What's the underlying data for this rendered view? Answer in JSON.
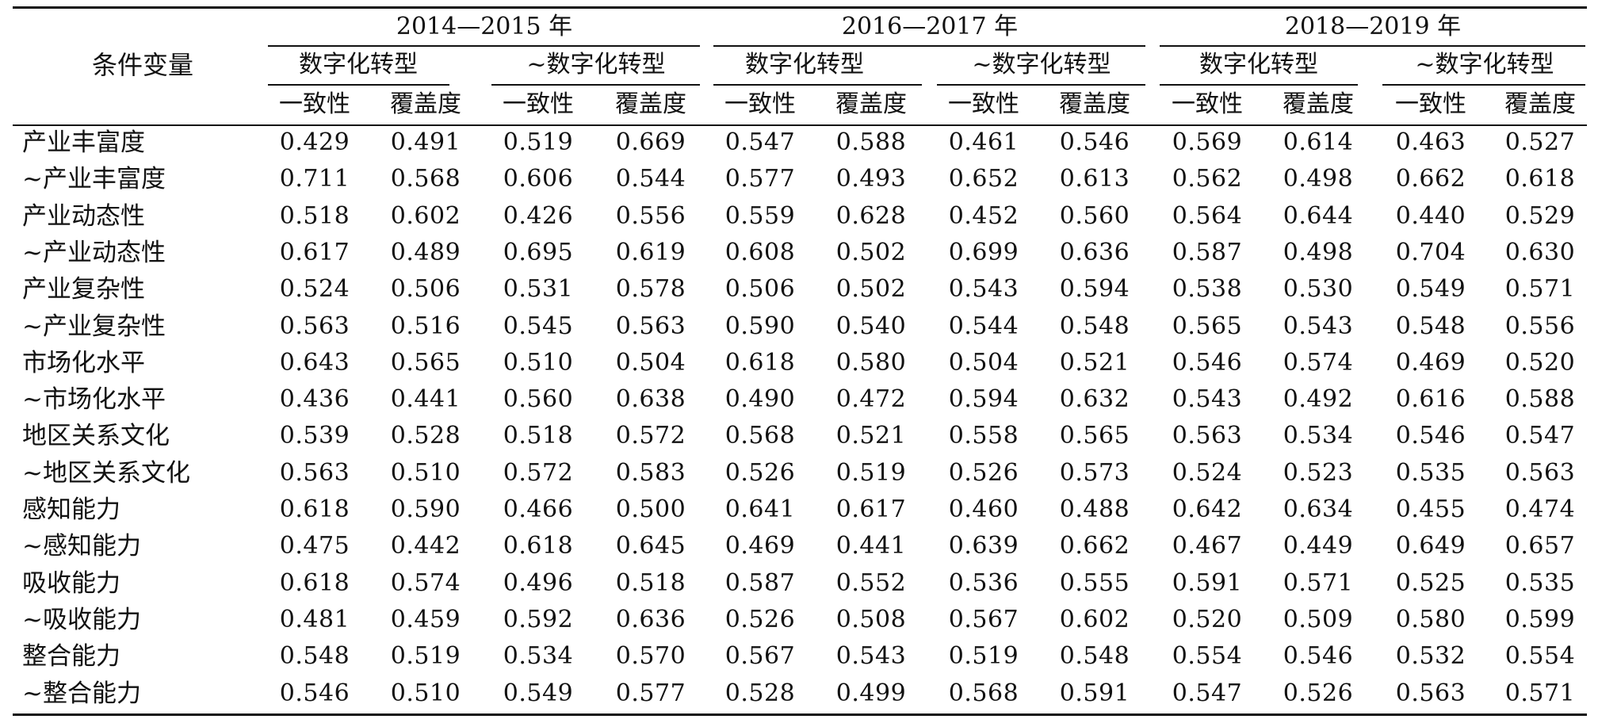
{
  "table": {
    "stub_header": "条件变量",
    "periods": [
      "2014—2015 年",
      "2016—2017 年",
      "2018—2019 年"
    ],
    "outcomes": [
      "数字化转型",
      "~数字化转型"
    ],
    "measures": [
      "一致性",
      "覆盖度"
    ],
    "rows": [
      {
        "label": "产业丰富度",
        "values": [
          "0.429",
          "0.491",
          "0.519",
          "0.669",
          "0.547",
          "0.588",
          "0.461",
          "0.546",
          "0.569",
          "0.614",
          "0.463",
          "0.527"
        ]
      },
      {
        "label": "~产业丰富度",
        "values": [
          "0.711",
          "0.568",
          "0.606",
          "0.544",
          "0.577",
          "0.493",
          "0.652",
          "0.613",
          "0.562",
          "0.498",
          "0.662",
          "0.618"
        ]
      },
      {
        "label": "产业动态性",
        "values": [
          "0.518",
          "0.602",
          "0.426",
          "0.556",
          "0.559",
          "0.628",
          "0.452",
          "0.560",
          "0.564",
          "0.644",
          "0.440",
          "0.529"
        ]
      },
      {
        "label": "~产业动态性",
        "values": [
          "0.617",
          "0.489",
          "0.695",
          "0.619",
          "0.608",
          "0.502",
          "0.699",
          "0.636",
          "0.587",
          "0.498",
          "0.704",
          "0.630"
        ]
      },
      {
        "label": "产业复杂性",
        "values": [
          "0.524",
          "0.506",
          "0.531",
          "0.578",
          "0.506",
          "0.502",
          "0.543",
          "0.594",
          "0.538",
          "0.530",
          "0.549",
          "0.571"
        ]
      },
      {
        "label": "~产业复杂性",
        "values": [
          "0.563",
          "0.516",
          "0.545",
          "0.563",
          "0.590",
          "0.540",
          "0.544",
          "0.548",
          "0.565",
          "0.543",
          "0.548",
          "0.556"
        ]
      },
      {
        "label": "市场化水平",
        "values": [
          "0.643",
          "0.565",
          "0.510",
          "0.504",
          "0.618",
          "0.580",
          "0.504",
          "0.521",
          "0.546",
          "0.574",
          "0.469",
          "0.520"
        ]
      },
      {
        "label": "~市场化水平",
        "values": [
          "0.436",
          "0.441",
          "0.560",
          "0.638",
          "0.490",
          "0.472",
          "0.594",
          "0.632",
          "0.543",
          "0.492",
          "0.616",
          "0.588"
        ]
      },
      {
        "label": "地区关系文化",
        "values": [
          "0.539",
          "0.528",
          "0.518",
          "0.572",
          "0.568",
          "0.521",
          "0.558",
          "0.565",
          "0.563",
          "0.534",
          "0.546",
          "0.547"
        ]
      },
      {
        "label": "~地区关系文化",
        "values": [
          "0.563",
          "0.510",
          "0.572",
          "0.583",
          "0.526",
          "0.519",
          "0.526",
          "0.573",
          "0.524",
          "0.523",
          "0.535",
          "0.563"
        ]
      },
      {
        "label": "感知能力",
        "values": [
          "0.618",
          "0.590",
          "0.466",
          "0.500",
          "0.641",
          "0.617",
          "0.460",
          "0.488",
          "0.642",
          "0.634",
          "0.455",
          "0.474"
        ]
      },
      {
        "label": "~感知能力",
        "values": [
          "0.475",
          "0.442",
          "0.618",
          "0.645",
          "0.469",
          "0.441",
          "0.639",
          "0.662",
          "0.467",
          "0.449",
          "0.649",
          "0.657"
        ]
      },
      {
        "label": "吸收能力",
        "values": [
          "0.618",
          "0.574",
          "0.496",
          "0.518",
          "0.587",
          "0.552",
          "0.536",
          "0.555",
          "0.591",
          "0.571",
          "0.525",
          "0.535"
        ]
      },
      {
        "label": "~吸收能力",
        "values": [
          "0.481",
          "0.459",
          "0.592",
          "0.636",
          "0.526",
          "0.508",
          "0.567",
          "0.602",
          "0.520",
          "0.509",
          "0.580",
          "0.599"
        ]
      },
      {
        "label": "整合能力",
        "values": [
          "0.548",
          "0.519",
          "0.534",
          "0.570",
          "0.567",
          "0.543",
          "0.519",
          "0.548",
          "0.554",
          "0.546",
          "0.532",
          "0.554"
        ]
      },
      {
        "label": "~整合能力",
        "values": [
          "0.546",
          "0.510",
          "0.549",
          "0.577",
          "0.528",
          "0.499",
          "0.568",
          "0.591",
          "0.547",
          "0.526",
          "0.563",
          "0.571"
        ]
      }
    ]
  }
}
